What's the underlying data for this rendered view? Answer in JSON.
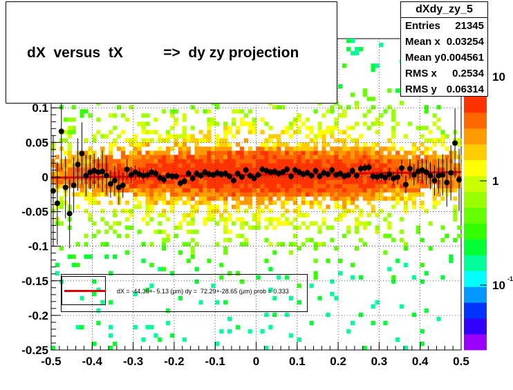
{
  "title": "dX  versus  tX          =>  dy zy projection",
  "stats": {
    "name": "dXdy_zy_5",
    "rows": [
      {
        "label": "Entries",
        "value": "21345"
      },
      {
        "label": "Mean x",
        "value": "0.03254"
      },
      {
        "label": "Mean y",
        "value": "0.004561"
      },
      {
        "label": "RMS x",
        "value": "0.2534"
      },
      {
        "label": "RMS y",
        "value": "0.06314"
      }
    ]
  },
  "fit_text": "dX = -44.36+- 5.13 (μm) dy =  72.29+-28.65 (μm) prob = 0.333",
  "colors": {
    "fit_line": "#e00000",
    "markers": "#000000"
  },
  "chart_data": {
    "type": "heatmap",
    "xlim": [
      -0.5,
      0.5
    ],
    "ylim": [
      -0.25,
      0.2
    ],
    "x_ticks": [
      "-0.5",
      "-0.4",
      "-0.3",
      "-0.2",
      "-0.1",
      "0",
      "0.1",
      "0.2",
      "0.3",
      "0.4",
      "0.5"
    ],
    "y_ticks": [
      "-0.25",
      "-0.2",
      "-0.15",
      "-0.1",
      "-0.05",
      "0",
      "0.05",
      "0.1"
    ],
    "z_scale": "log",
    "z_ticks": [
      "10",
      "1",
      "10"
    ],
    "z_tick_superscripts": [
      "",
      "",
      "-1"
    ],
    "fit_line": {
      "slope": 0.0723,
      "intercept": 0.0072
    },
    "profile": {
      "x": [
        -0.495,
        -0.485,
        -0.475,
        -0.465,
        -0.455,
        -0.445,
        -0.435,
        -0.425,
        -0.415,
        -0.405,
        -0.395,
        -0.385,
        -0.375,
        -0.365,
        -0.355,
        -0.345,
        -0.335,
        -0.325,
        -0.315,
        -0.305,
        -0.295,
        -0.285,
        -0.275,
        -0.265,
        -0.255,
        -0.245,
        -0.235,
        -0.225,
        -0.215,
        -0.205,
        -0.195,
        -0.185,
        -0.175,
        -0.165,
        -0.155,
        -0.145,
        -0.135,
        -0.125,
        -0.115,
        -0.105,
        -0.095,
        -0.085,
        -0.075,
        -0.065,
        -0.055,
        -0.045,
        -0.035,
        -0.025,
        -0.015,
        -0.005,
        0.005,
        0.015,
        0.025,
        0.035,
        0.045,
        0.055,
        0.065,
        0.075,
        0.085,
        0.095,
        0.105,
        0.115,
        0.125,
        0.135,
        0.145,
        0.155,
        0.165,
        0.175,
        0.185,
        0.195,
        0.205,
        0.215,
        0.225,
        0.235,
        0.245,
        0.255,
        0.265,
        0.275,
        0.285,
        0.295,
        0.305,
        0.315,
        0.325,
        0.335,
        0.345,
        0.355,
        0.365,
        0.375,
        0.385,
        0.395,
        0.405,
        0.415,
        0.425,
        0.435,
        0.445,
        0.455,
        0.465,
        0.475,
        0.485,
        0.495
      ],
      "y": [
        -0.02,
        -0.038,
        0.066,
        -0.015,
        -0.053,
        -0.012,
        0.018,
        0.034,
        0.002,
        0.007,
        0.009,
        0.007,
        0.008,
        0.002,
        -0.01,
        -0.005,
        -0.015,
        -0.012,
        0.011,
        0.003,
        0.007,
        0.004,
        0.002,
        0.003,
        0.007,
        0.005,
        -0.001,
        -0.004,
        0.002,
        0.001,
        0.001,
        -0.009,
        -0.006,
        0.005,
        -0.002,
        0.005,
        0.002,
        0.007,
        0.004,
        0.003,
        0.006,
        0.004,
        0.005,
        0.001,
        -0.005,
        0.005,
        0.0,
        0.01,
        0.002,
        -0.002,
        0.003,
        0.011,
        0.009,
        0.007,
        0.008,
        0.005,
        0.007,
        0.011,
        0.001,
        0.01,
        0.007,
        0.004,
        0.006,
        0.002,
        0.009,
        0.001,
        0.006,
        0.004,
        0.01,
        0.003,
        0.005,
        0.001,
        0.003,
        0.009,
        0.002,
        0.012,
        0.013,
        0.014,
        0.001,
        0.0,
        0.002,
        -0.001,
        0.004,
        -0.002,
        0.0,
        0.013,
        -0.011,
        0.012,
        0.003,
        0.008,
        0.01,
        0.007,
        0.002,
        -0.005,
        0.002,
        0.003,
        -0.008,
        0.006,
        0.049,
        -0.004
      ],
      "err": [
        0.08,
        0.06,
        0.055,
        0.045,
        0.05,
        0.04,
        0.038,
        0.045,
        0.03,
        0.025,
        0.025,
        0.022,
        0.03,
        0.028,
        0.02,
        0.022,
        0.025,
        0.018,
        0.015,
        0.012,
        0.01,
        0.008,
        0.008,
        0.007,
        0.007,
        0.006,
        0.006,
        0.006,
        0.005,
        0.005,
        0.005,
        0.005,
        0.005,
        0.005,
        0.005,
        0.005,
        0.005,
        0.005,
        0.005,
        0.005,
        0.005,
        0.005,
        0.005,
        0.005,
        0.005,
        0.005,
        0.005,
        0.005,
        0.005,
        0.005,
        0.005,
        0.005,
        0.005,
        0.005,
        0.005,
        0.005,
        0.005,
        0.005,
        0.005,
        0.005,
        0.005,
        0.005,
        0.005,
        0.005,
        0.005,
        0.005,
        0.005,
        0.005,
        0.005,
        0.005,
        0.005,
        0.005,
        0.005,
        0.005,
        0.005,
        0.006,
        0.006,
        0.006,
        0.007,
        0.007,
        0.008,
        0.008,
        0.009,
        0.01,
        0.011,
        0.012,
        0.013,
        0.014,
        0.015,
        0.016,
        0.017,
        0.018,
        0.02,
        0.022,
        0.025,
        0.03,
        0.035,
        0.04,
        0.05,
        0.045
      ]
    }
  }
}
